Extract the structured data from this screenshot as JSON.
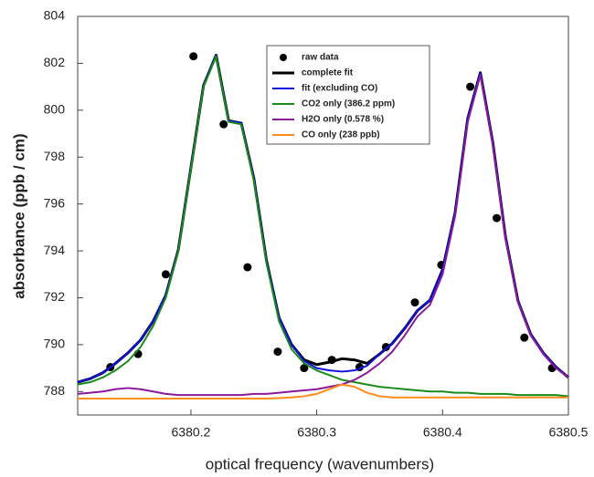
{
  "chart_data": {
    "type": "line",
    "xlabel": "optical frequency (wavenumbers)",
    "ylabel": "absorbance (ppb / cm)",
    "xlim": [
      6380.11,
      6380.5
    ],
    "xticks": [
      6380.2,
      6380.3,
      6380.4,
      6380.5
    ],
    "ylim": [
      787,
      804
    ],
    "yticks": [
      788,
      790,
      792,
      794,
      796,
      798,
      800,
      802,
      804
    ],
    "x": [
      6380.11,
      6380.12,
      6380.13,
      6380.14,
      6380.15,
      6380.16,
      6380.17,
      6380.18,
      6380.19,
      6380.2,
      6380.21,
      6380.22,
      6380.23,
      6380.24,
      6380.25,
      6380.26,
      6380.27,
      6380.28,
      6380.29,
      6380.3,
      6380.31,
      6380.32,
      6380.33,
      6380.34,
      6380.35,
      6380.36,
      6380.37,
      6380.38,
      6380.39,
      6380.4,
      6380.41,
      6380.42,
      6380.43,
      6380.44,
      6380.45,
      6380.46,
      6380.47,
      6380.48,
      6380.49,
      6380.5
    ],
    "series": [
      {
        "name": "raw data",
        "color": "#000000",
        "marker": true,
        "x": [
          6380.136,
          6380.158,
          6380.18,
          6380.202,
          6380.226,
          6380.245,
          6380.269,
          6380.29,
          6380.312,
          6380.334,
          6380.355,
          6380.378,
          6380.399,
          6380.422,
          6380.443,
          6380.465,
          6380.487
        ],
        "values": [
          789.04,
          789.6,
          793.0,
          802.3,
          799.4,
          793.3,
          789.7,
          789.0,
          789.35,
          789.04,
          789.9,
          791.8,
          793.4,
          801.0,
          795.4,
          790.3,
          789.0
        ]
      },
      {
        "name": "complete fit",
        "color": "#000000",
        "values": [
          788.4,
          788.55,
          788.8,
          789.2,
          789.65,
          790.2,
          791.0,
          792.1,
          794.05,
          797.55,
          801.05,
          802.35,
          799.55,
          799.45,
          797.1,
          793.6,
          791.15,
          790.0,
          789.35,
          789.15,
          789.25,
          789.4,
          789.35,
          789.2,
          789.6,
          790.05,
          790.7,
          791.45,
          791.9,
          793.2,
          795.65,
          799.65,
          801.6,
          798.6,
          794.6,
          791.85,
          790.45,
          789.65,
          789.05,
          788.6
        ]
      },
      {
        "name": "fit (excluding CO)",
        "color": "#1010e0",
        "values": [
          788.4,
          788.55,
          788.8,
          789.2,
          789.65,
          790.2,
          791.0,
          792.1,
          794.05,
          797.55,
          801.05,
          802.35,
          799.55,
          799.45,
          797.1,
          793.6,
          791.15,
          790.0,
          789.3,
          789.0,
          788.9,
          788.85,
          788.9,
          789.1,
          789.6,
          790.05,
          790.7,
          791.45,
          791.9,
          793.2,
          795.65,
          799.65,
          801.6,
          798.6,
          794.6,
          791.85,
          790.45,
          789.65,
          789.05,
          788.6
        ]
      },
      {
        "name": "CO2 only (386.2 ppm)",
        "color": "#1a8a1a",
        "values": [
          788.3,
          788.4,
          788.6,
          788.9,
          789.3,
          789.9,
          790.8,
          792.0,
          794.0,
          797.5,
          801.0,
          802.3,
          799.5,
          799.4,
          797.0,
          793.5,
          791.0,
          789.8,
          789.2,
          788.9,
          788.7,
          788.5,
          788.4,
          788.3,
          788.2,
          788.15,
          788.1,
          788.05,
          788.0,
          788.0,
          787.95,
          787.95,
          787.9,
          787.9,
          787.9,
          787.85,
          787.85,
          787.85,
          787.85,
          787.8
        ]
      },
      {
        "name": "H2O only (0.578 %)",
        "color": "#8a1a9a",
        "values": [
          787.9,
          787.95,
          788.0,
          788.1,
          788.15,
          788.1,
          788.0,
          787.9,
          787.85,
          787.85,
          787.85,
          787.85,
          787.85,
          787.85,
          787.9,
          787.9,
          787.95,
          788.0,
          788.05,
          788.1,
          788.2,
          788.3,
          788.5,
          788.8,
          789.2,
          789.7,
          790.4,
          791.2,
          791.7,
          793.0,
          795.5,
          799.5,
          801.5,
          798.5,
          794.5,
          791.8,
          790.4,
          789.6,
          789.0,
          788.6
        ]
      },
      {
        "name": "CO only (238 ppb)",
        "color": "#ff8c1a",
        "values": [
          787.7,
          787.7,
          787.7,
          787.7,
          787.7,
          787.7,
          787.7,
          787.7,
          787.7,
          787.7,
          787.7,
          787.7,
          787.7,
          787.7,
          787.7,
          787.7,
          787.72,
          787.75,
          787.8,
          787.9,
          788.1,
          788.3,
          788.2,
          787.95,
          787.8,
          787.75,
          787.75,
          787.75,
          787.75,
          787.75,
          787.75,
          787.75,
          787.75,
          787.75,
          787.75,
          787.75,
          787.75,
          787.75,
          787.75,
          787.75
        ]
      }
    ]
  }
}
